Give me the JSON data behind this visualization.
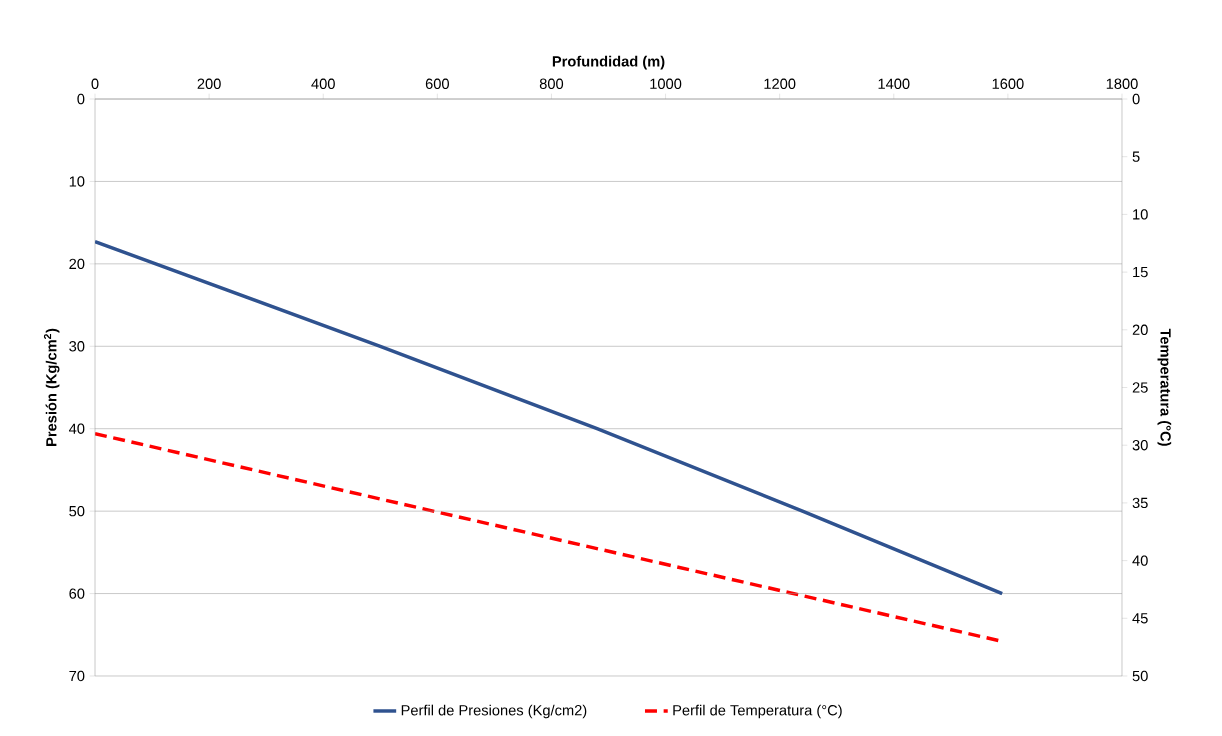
{
  "chart_data": {
    "type": "line",
    "xlabel": "Profundidad (m)",
    "ylabel": "Presión (Kg/cm$^{2}$)",
    "y2label": "Temperatura (°C)",
    "xlim": [
      0,
      1800
    ],
    "xticks": [
      0,
      200,
      400,
      600,
      800,
      1000,
      1200,
      1400,
      1600,
      1800
    ],
    "ylim": [
      70,
      0
    ],
    "yticks": [
      0,
      10,
      20,
      30,
      40,
      50,
      60,
      70
    ],
    "y2lim": [
      50,
      0
    ],
    "y2ticks": [
      0,
      5,
      10,
      15,
      20,
      25,
      30,
      35,
      40,
      45,
      50
    ],
    "grid": "y",
    "legend": "bottom",
    "series": [
      {
        "name": "Perfil de Presiones (Kg/cm2)",
        "color": "#2f528f",
        "line_style": "solid",
        "axis": "y",
        "x": [
          0,
          500,
          880,
          1240,
          1590
        ],
        "values": [
          17.3,
          30,
          40,
          50,
          60
        ]
      },
      {
        "name": "Perfil de Temperatura (°C)",
        "color": "#ff0000",
        "line_style": "dashed",
        "axis": "y2",
        "x": [
          0,
          1590
        ],
        "values": [
          29,
          47
        ]
      }
    ]
  }
}
